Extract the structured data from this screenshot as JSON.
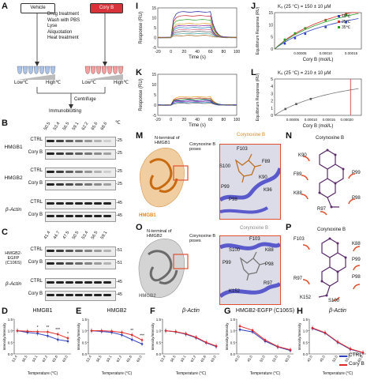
{
  "panels": {
    "A": "A",
    "B": "B",
    "C": "C",
    "D": "D",
    "E": "E",
    "F": "F",
    "G": "G",
    "H": "H",
    "I": "I",
    "J": "J",
    "K": "K",
    "L": "L",
    "M": "M",
    "N": "N",
    "O": "O",
    "P": "P"
  },
  "panelA": {
    "vehicle": "Vehicle",
    "coryb": "Cory B",
    "steps": [
      "Drug treatment",
      "Wash with PBS",
      "Lyse",
      "Aliquotation",
      "Heat treatment"
    ],
    "low": "Low℃",
    "high": "High℃",
    "centrifuge": "Centrifuge",
    "immunoblotting": "Immunoblotting"
  },
  "panelB": {
    "temps": [
      "50.5",
      "53.4",
      "56.5",
      "59.1",
      "62.2",
      "65.6",
      "68.6"
    ],
    "unit": "℃",
    "groups": [
      "HMGB1",
      "HMGB2",
      "β-Actin"
    ],
    "rows": [
      "CTRL",
      "Cory B",
      "CTRL",
      "Cory B",
      "CTRL",
      "Cory B"
    ],
    "kda": [
      "-25",
      "-25",
      "-25",
      "-25",
      "-45",
      "-45"
    ]
  },
  "panelC": {
    "temps": [
      "41.4",
      "44.7",
      "47.5",
      "50.5",
      "53.4",
      "56.5",
      "59.1"
    ],
    "groups": [
      "HMGB2-EGFP (C106S)",
      "β-Actin"
    ],
    "rows": [
      "CTRL",
      "Cory B",
      "CTRL",
      "Cory B"
    ],
    "kda": [
      "-51",
      "-51",
      "-45",
      "-45"
    ]
  },
  "lineplots": {
    "ylabel": "Intensity/Intensity",
    "xlabel": "Temperature (°C)",
    "titles": [
      "HMGB1",
      "HMGB2",
      "β-Actin",
      "HMGB2-EGFP (C106S)",
      "β-Actin"
    ],
    "D_x": [
      "53.4",
      "56.5",
      "59.1",
      "62.2",
      "65.6",
      "69.0"
    ],
    "E_x": [
      "53.4",
      "56.5",
      "59.1",
      "62.2",
      "65.6",
      "69.0"
    ],
    "F_x": [
      "53.4",
      "56.5",
      "59.1",
      "62.2",
      "65.6",
      "69.0"
    ],
    "G_x": [
      "40.0",
      "45.0",
      "50.0",
      "55.0",
      "60.0"
    ],
    "H_x": [
      "40.0",
      "45.0",
      "50.0",
      "55.0",
      "60.0"
    ],
    "D_stars": [
      "*",
      "**",
      "***",
      "*"
    ],
    "E_stars": [
      "**",
      "***"
    ],
    "yticks": [
      "1.5",
      "1.0",
      "0.5",
      "0.0"
    ],
    "legend": [
      "CTRL",
      "Cory B"
    ]
  },
  "colors": {
    "ctrl": "#2f3fbf",
    "coryb": "#e02828",
    "vehicle_tube": "#aac4e8",
    "cory_tube": "#f2a0a0",
    "hmgb1": "#e8a24a",
    "hmgb2": "#a0a0a0",
    "zoom_border": "#e05030"
  },
  "panelI": {
    "ylabel": "Response (RU)",
    "xlabel": "Time (s)",
    "xticks": [
      "-20",
      "0",
      "20",
      "40",
      "60",
      "80",
      "100"
    ],
    "yticks": [
      "15",
      "10",
      "5",
      "0",
      "-5"
    ]
  },
  "panelJ": {
    "title": "K₉ (25 °C) = 150 ± 10 μM",
    "ylabel": "Equilibrium Response (RU)",
    "xlabel": "Cory B (mol/L)",
    "xticks": [
      "0.00005",
      "0.00010",
      "0.00015"
    ],
    "yticks": [
      "15",
      "10",
      "5",
      "0"
    ],
    "legend": [
      "15℃",
      "25℃",
      "35℃"
    ]
  },
  "panelK": {
    "ylabel": "Response (RU)",
    "xlabel": "Time (s)",
    "xticks": [
      "-20",
      "0",
      "20",
      "40",
      "60",
      "80",
      "100"
    ],
    "yticks": [
      "15",
      "10",
      "5",
      "0",
      "-5"
    ]
  },
  "panelL": {
    "title": "K₉ (25 °C) = 210 ± 10 μM",
    "ylabel": "Equilibrium Response (RU)",
    "xlabel": "Cory B (mol/L)",
    "xticks": [
      "0.00005",
      "0.00010",
      "0.00015",
      "0.00020"
    ],
    "yticks": [
      "5",
      "4",
      "3",
      "2",
      "1",
      "0"
    ]
  },
  "panelM": {
    "nterm": "N-terminal of HMGB1",
    "poses": "Corynoxine B poses",
    "protein": "HMGB1",
    "zoom_title": "Corynoxine B",
    "residues": [
      "F103",
      "F89",
      "S100",
      "K90",
      "P99",
      "K96",
      "P98"
    ]
  },
  "panelN": {
    "title": "Corynoxine B",
    "residues": [
      "K90",
      "F89",
      "P99",
      "K88",
      "R97",
      "P98"
    ]
  },
  "panelO": {
    "nterm": "N-terminal of HMGB2",
    "poses": "Corynoxine B poses",
    "protein": "HMGB2",
    "zoom_title": "Corynoxine B",
    "residues": [
      "F103",
      "S100",
      "K88",
      "P99",
      "P98",
      "K152",
      "R97"
    ]
  },
  "panelP": {
    "title": "Corynoxine B",
    "residues": [
      "F103",
      "K88",
      "P99",
      "P98",
      "R97",
      "K152",
      "S100"
    ]
  }
}
